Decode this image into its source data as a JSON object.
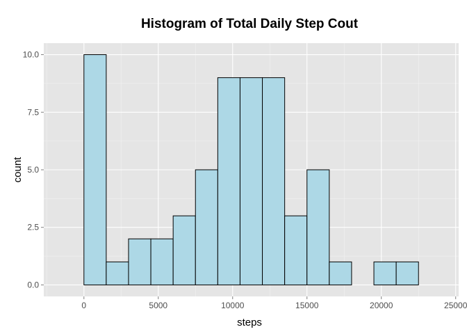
{
  "chart_data": {
    "type": "bar",
    "title": "Histogram of Total Daily Step Cout",
    "xlabel": "steps",
    "ylabel": "count",
    "bins": [
      {
        "x0": -1500,
        "x1": 0,
        "count": 0
      },
      {
        "x0": 0,
        "x1": 1500,
        "count": 10
      },
      {
        "x0": 1500,
        "x1": 3000,
        "count": 1
      },
      {
        "x0": 3000,
        "x1": 4500,
        "count": 2
      },
      {
        "x0": 4500,
        "x1": 6000,
        "count": 2
      },
      {
        "x0": 6000,
        "x1": 7500,
        "count": 3
      },
      {
        "x0": 7500,
        "x1": 9000,
        "count": 5
      },
      {
        "x0": 9000,
        "x1": 10500,
        "count": 9
      },
      {
        "x0": 10500,
        "x1": 12000,
        "count": 9
      },
      {
        "x0": 12000,
        "x1": 13500,
        "count": 9
      },
      {
        "x0": 13500,
        "x1": 15000,
        "count": 3
      },
      {
        "x0": 15000,
        "x1": 16500,
        "count": 5
      },
      {
        "x0": 16500,
        "x1": 18000,
        "count": 1
      },
      {
        "x0": 18000,
        "x1": 19500,
        "count": 0
      },
      {
        "x0": 19500,
        "x1": 21000,
        "count": 1
      },
      {
        "x0": 21000,
        "x1": 22500,
        "count": 1
      },
      {
        "x0": 22500,
        "x1": 24000,
        "count": 0
      }
    ],
    "xlim": [
      -2700,
      25200
    ],
    "ylim": [
      -0.5,
      10.5
    ],
    "xticks": [
      0,
      5000,
      10000,
      15000,
      20000,
      25000
    ],
    "xtick_labels": [
      "0",
      "5000",
      "10000",
      "15000",
      "20000",
      "25000"
    ],
    "yticks": [
      0,
      2.5,
      5,
      7.5,
      10
    ],
    "ytick_labels": [
      "0.0",
      "2.5",
      "5.0",
      "7.5",
      "10.0"
    ],
    "grid": true,
    "colors": {
      "bar_fill": "#add8e6",
      "bar_edge": "#000000",
      "panel_bg": "#e5e5e5",
      "grid_major": "#ffffff",
      "grid_minor": "#f2f2f2"
    }
  }
}
